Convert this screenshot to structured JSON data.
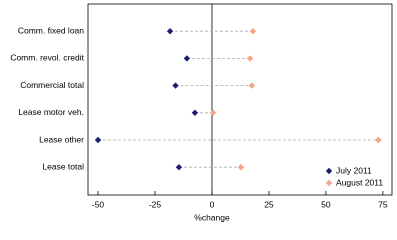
{
  "chart_data": {
    "type": "dot",
    "categories": [
      "Comm. fixed loan",
      "Comm. revol. credit",
      "Commercial total",
      "Lease motor veh.",
      "Lease other",
      "Lease total"
    ],
    "series": [
      {
        "name": "July 2011",
        "color": "#1a1f6e",
        "values": [
          -18.4,
          -11,
          -16,
          -7.5,
          -50,
          -14.5
        ]
      },
      {
        "name": "August 2011",
        "color": "#f4a582",
        "values": [
          18,
          16.7,
          17.5,
          0.5,
          73,
          12.7
        ]
      }
    ],
    "x_label": "%change",
    "xlim": [
      -54.4,
      79
    ],
    "xticks": [
      -50,
      -25,
      0,
      25,
      50,
      75
    ],
    "legend": "lower right"
  }
}
